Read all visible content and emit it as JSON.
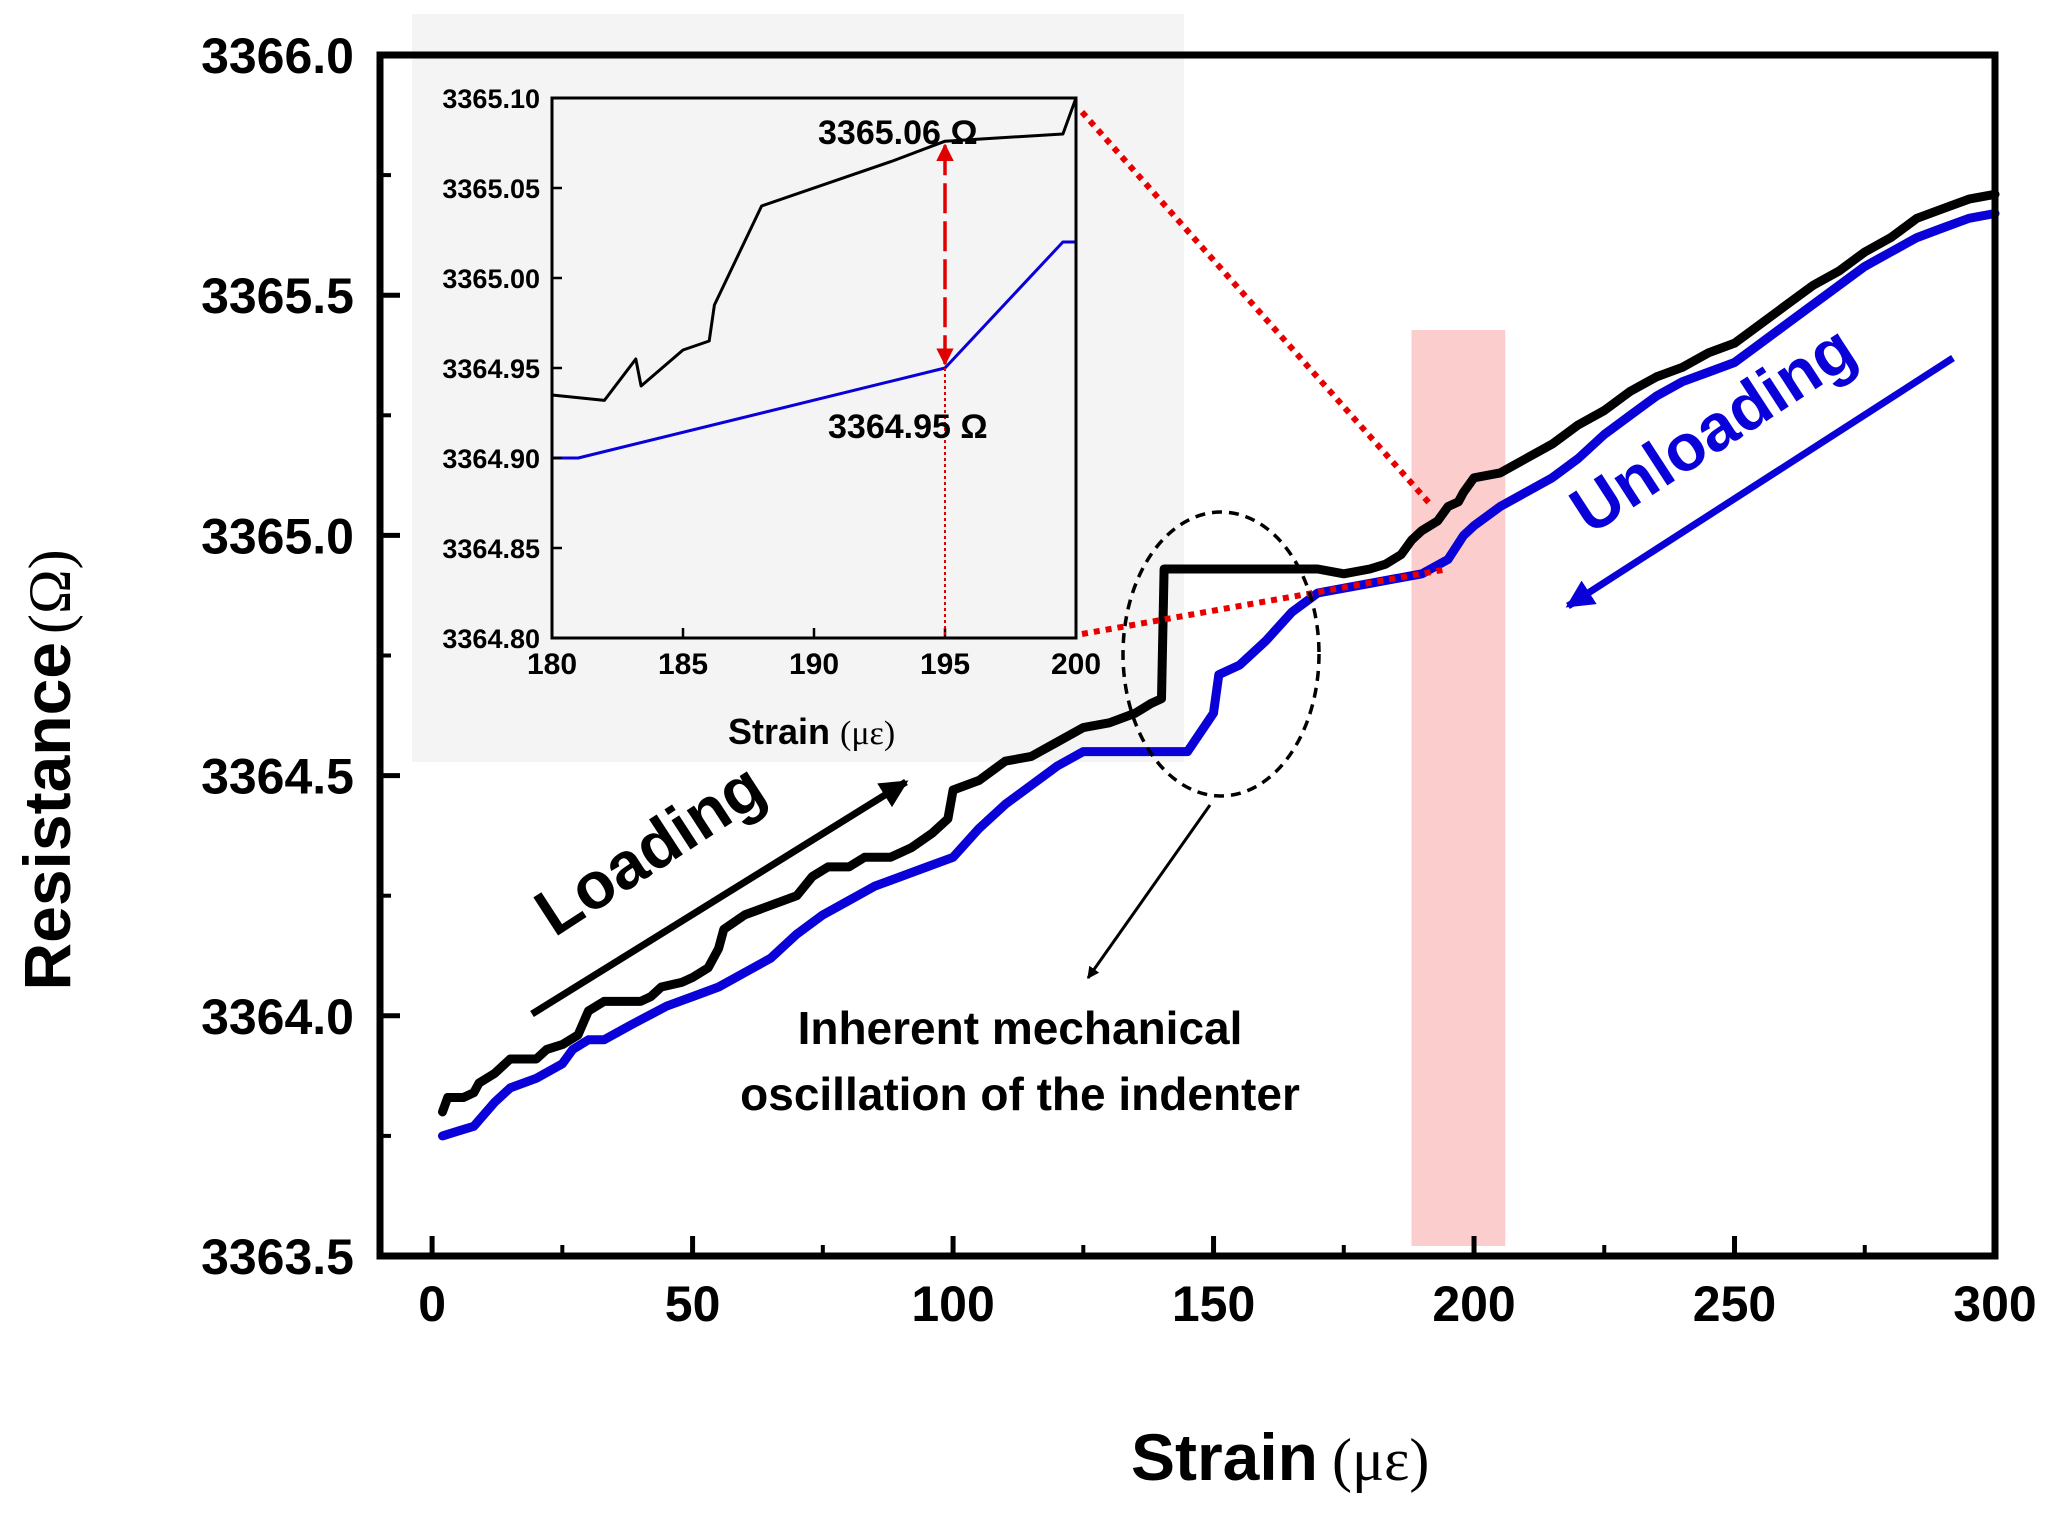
{
  "chart_data": [
    {
      "type": "line",
      "xlabel": "Strain",
      "xunit": "(με)",
      "ylabel": "Resistance",
      "yunit": "(Ω)",
      "xlim": [
        -10,
        300
      ],
      "ylim": [
        3363.5,
        3366.0
      ],
      "xticks": [
        0,
        50,
        100,
        150,
        200,
        250,
        300
      ],
      "xtick_labels": [
        "0",
        "50",
        "100",
        "150",
        "200",
        "250",
        "300"
      ],
      "yticks": [
        3363.5,
        3364.0,
        3364.5,
        3365.0,
        3365.5,
        3366.0
      ],
      "ytick_labels": [
        "3363.5",
        "3364.0",
        "3364.5",
        "3365.0",
        "3365.5",
        "3366.0"
      ],
      "series": [
        {
          "name": "Loading",
          "color": "#000000",
          "points": [
            [
              2,
              3363.8
            ],
            [
              3,
              3363.83
            ],
            [
              6,
              3363.83
            ],
            [
              8,
              3363.84
            ],
            [
              9,
              3363.86
            ],
            [
              12,
              3363.88
            ],
            [
              15,
              3363.91
            ],
            [
              20,
              3363.91
            ],
            [
              22,
              3363.93
            ],
            [
              25,
              3363.94
            ],
            [
              28,
              3363.96
            ],
            [
              30,
              3364.01
            ],
            [
              33,
              3364.03
            ],
            [
              40,
              3364.03
            ],
            [
              42,
              3364.04
            ],
            [
              44,
              3364.06
            ],
            [
              48,
              3364.07
            ],
            [
              50,
              3364.08
            ],
            [
              53,
              3364.1
            ],
            [
              55,
              3364.14
            ],
            [
              56,
              3364.18
            ],
            [
              60,
              3364.21
            ],
            [
              65,
              3364.23
            ],
            [
              70,
              3364.25
            ],
            [
              73,
              3364.29
            ],
            [
              76,
              3364.31
            ],
            [
              80,
              3364.31
            ],
            [
              83,
              3364.33
            ],
            [
              88,
              3364.33
            ],
            [
              92,
              3364.35
            ],
            [
              96,
              3364.38
            ],
            [
              99,
              3364.41
            ],
            [
              100,
              3364.47
            ],
            [
              105,
              3364.49
            ],
            [
              110,
              3364.53
            ],
            [
              115,
              3364.54
            ],
            [
              120,
              3364.57
            ],
            [
              125,
              3364.6
            ],
            [
              130,
              3364.61
            ],
            [
              135,
              3364.63
            ],
            [
              138,
              3364.65
            ],
            [
              140,
              3364.66
            ],
            [
              140.5,
              3364.93
            ],
            [
              150,
              3364.93
            ],
            [
              160,
              3364.93
            ],
            [
              170,
              3364.93
            ],
            [
              175,
              3364.92
            ],
            [
              180,
              3364.93
            ],
            [
              183,
              3364.94
            ],
            [
              186,
              3364.96
            ],
            [
              188,
              3364.99
            ],
            [
              190,
              3365.01
            ],
            [
              193,
              3365.03
            ],
            [
              195,
              3365.06
            ],
            [
              197,
              3365.07
            ],
            [
              198,
              3365.09
            ],
            [
              200,
              3365.12
            ],
            [
              205,
              3365.13
            ],
            [
              210,
              3365.16
            ],
            [
              215,
              3365.19
            ],
            [
              220,
              3365.23
            ],
            [
              225,
              3365.26
            ],
            [
              230,
              3365.3
            ],
            [
              235,
              3365.33
            ],
            [
              240,
              3365.35
            ],
            [
              245,
              3365.38
            ],
            [
              250,
              3365.4
            ],
            [
              255,
              3365.44
            ],
            [
              260,
              3365.48
            ],
            [
              265,
              3365.52
            ],
            [
              270,
              3365.55
            ],
            [
              275,
              3365.59
            ],
            [
              280,
              3365.62
            ],
            [
              285,
              3365.66
            ],
            [
              290,
              3365.68
            ],
            [
              295,
              3365.7
            ],
            [
              300,
              3365.71
            ]
          ]
        },
        {
          "name": "Unloading",
          "color": "#0a00d8",
          "points": [
            [
              2,
              3363.75
            ],
            [
              5,
              3363.76
            ],
            [
              8,
              3363.77
            ],
            [
              12,
              3363.82
            ],
            [
              15,
              3363.85
            ],
            [
              20,
              3363.87
            ],
            [
              25,
              3363.9
            ],
            [
              27,
              3363.93
            ],
            [
              30,
              3363.95
            ],
            [
              33,
              3363.95
            ],
            [
              38,
              3363.98
            ],
            [
              45,
              3364.02
            ],
            [
              50,
              3364.04
            ],
            [
              55,
              3364.06
            ],
            [
              60,
              3364.09
            ],
            [
              65,
              3364.12
            ],
            [
              70,
              3364.17
            ],
            [
              75,
              3364.21
            ],
            [
              80,
              3364.24
            ],
            [
              85,
              3364.27
            ],
            [
              90,
              3364.29
            ],
            [
              95,
              3364.31
            ],
            [
              100,
              3364.33
            ],
            [
              105,
              3364.39
            ],
            [
              110,
              3364.44
            ],
            [
              115,
              3364.48
            ],
            [
              120,
              3364.52
            ],
            [
              125,
              3364.55
            ],
            [
              130,
              3364.55
            ],
            [
              145,
              3364.55
            ],
            [
              150,
              3364.63
            ],
            [
              151,
              3364.71
            ],
            [
              155,
              3364.73
            ],
            [
              160,
              3364.78
            ],
            [
              165,
              3364.84
            ],
            [
              170,
              3364.88
            ],
            [
              175,
              3364.89
            ],
            [
              180,
              3364.9
            ],
            [
              185,
              3364.91
            ],
            [
              190,
              3364.92
            ],
            [
              195,
              3364.95
            ],
            [
              198,
              3365.0
            ],
            [
              200,
              3365.02
            ],
            [
              205,
              3365.06
            ],
            [
              210,
              3365.09
            ],
            [
              215,
              3365.12
            ],
            [
              220,
              3365.16
            ],
            [
              225,
              3365.21
            ],
            [
              230,
              3365.25
            ],
            [
              235,
              3365.29
            ],
            [
              240,
              3365.32
            ],
            [
              245,
              3365.34
            ],
            [
              250,
              3365.36
            ],
            [
              255,
              3365.4
            ],
            [
              260,
              3365.44
            ],
            [
              265,
              3365.48
            ],
            [
              270,
              3365.52
            ],
            [
              275,
              3365.56
            ],
            [
              280,
              3365.59
            ],
            [
              285,
              3365.62
            ],
            [
              290,
              3365.64
            ],
            [
              295,
              3365.66
            ],
            [
              300,
              3365.67
            ]
          ]
        }
      ],
      "highlight_band": {
        "x_range": [
          188,
          206
        ],
        "color": "#fbc4c4"
      },
      "annotations": {
        "loading": "Loading",
        "unloading": "Unloading",
        "oscillation_line1": "Inherent mechanical",
        "oscillation_line2": "oscillation of the indenter"
      }
    },
    {
      "type": "line",
      "role": "inset",
      "xlabel": "Strain",
      "xunit": "(με)",
      "xlim": [
        180,
        200
      ],
      "ylim": [
        3364.8,
        3365.1
      ],
      "xticks": [
        180,
        185,
        190,
        195,
        200
      ],
      "xtick_labels": [
        "180",
        "185",
        "190",
        "195",
        "200"
      ],
      "yticks": [
        3364.8,
        3364.85,
        3364.9,
        3364.95,
        3365.0,
        3365.05,
        3365.1
      ],
      "ytick_labels": [
        "3364.80",
        "3364.85",
        "3364.90",
        "3364.95",
        "3365.00",
        "3365.05",
        "3365.10"
      ],
      "series": [
        {
          "name": "Loading",
          "color": "#000000",
          "points": [
            [
              180,
              3364.935
            ],
            [
              182,
              3364.932
            ],
            [
              183.2,
              3364.955
            ],
            [
              183.4,
              3364.94
            ],
            [
              185,
              3364.96
            ],
            [
              186,
              3364.965
            ],
            [
              186.2,
              3364.985
            ],
            [
              188,
              3365.04
            ],
            [
              193,
              3365.065
            ],
            [
              195,
              3365.076
            ],
            [
              199.5,
              3365.08
            ],
            [
              200,
              3365.1
            ]
          ]
        },
        {
          "name": "Unloading",
          "color": "#0a00d8",
          "points": [
            [
              180,
              3364.9
            ],
            [
              181,
              3364.9
            ],
            [
              195,
              3364.95
            ],
            [
              199.5,
              3365.02
            ],
            [
              200,
              3365.02
            ]
          ]
        }
      ],
      "annotations": {
        "upper_value": "3365.06 Ω",
        "lower_value": "3364.95 Ω"
      }
    }
  ]
}
